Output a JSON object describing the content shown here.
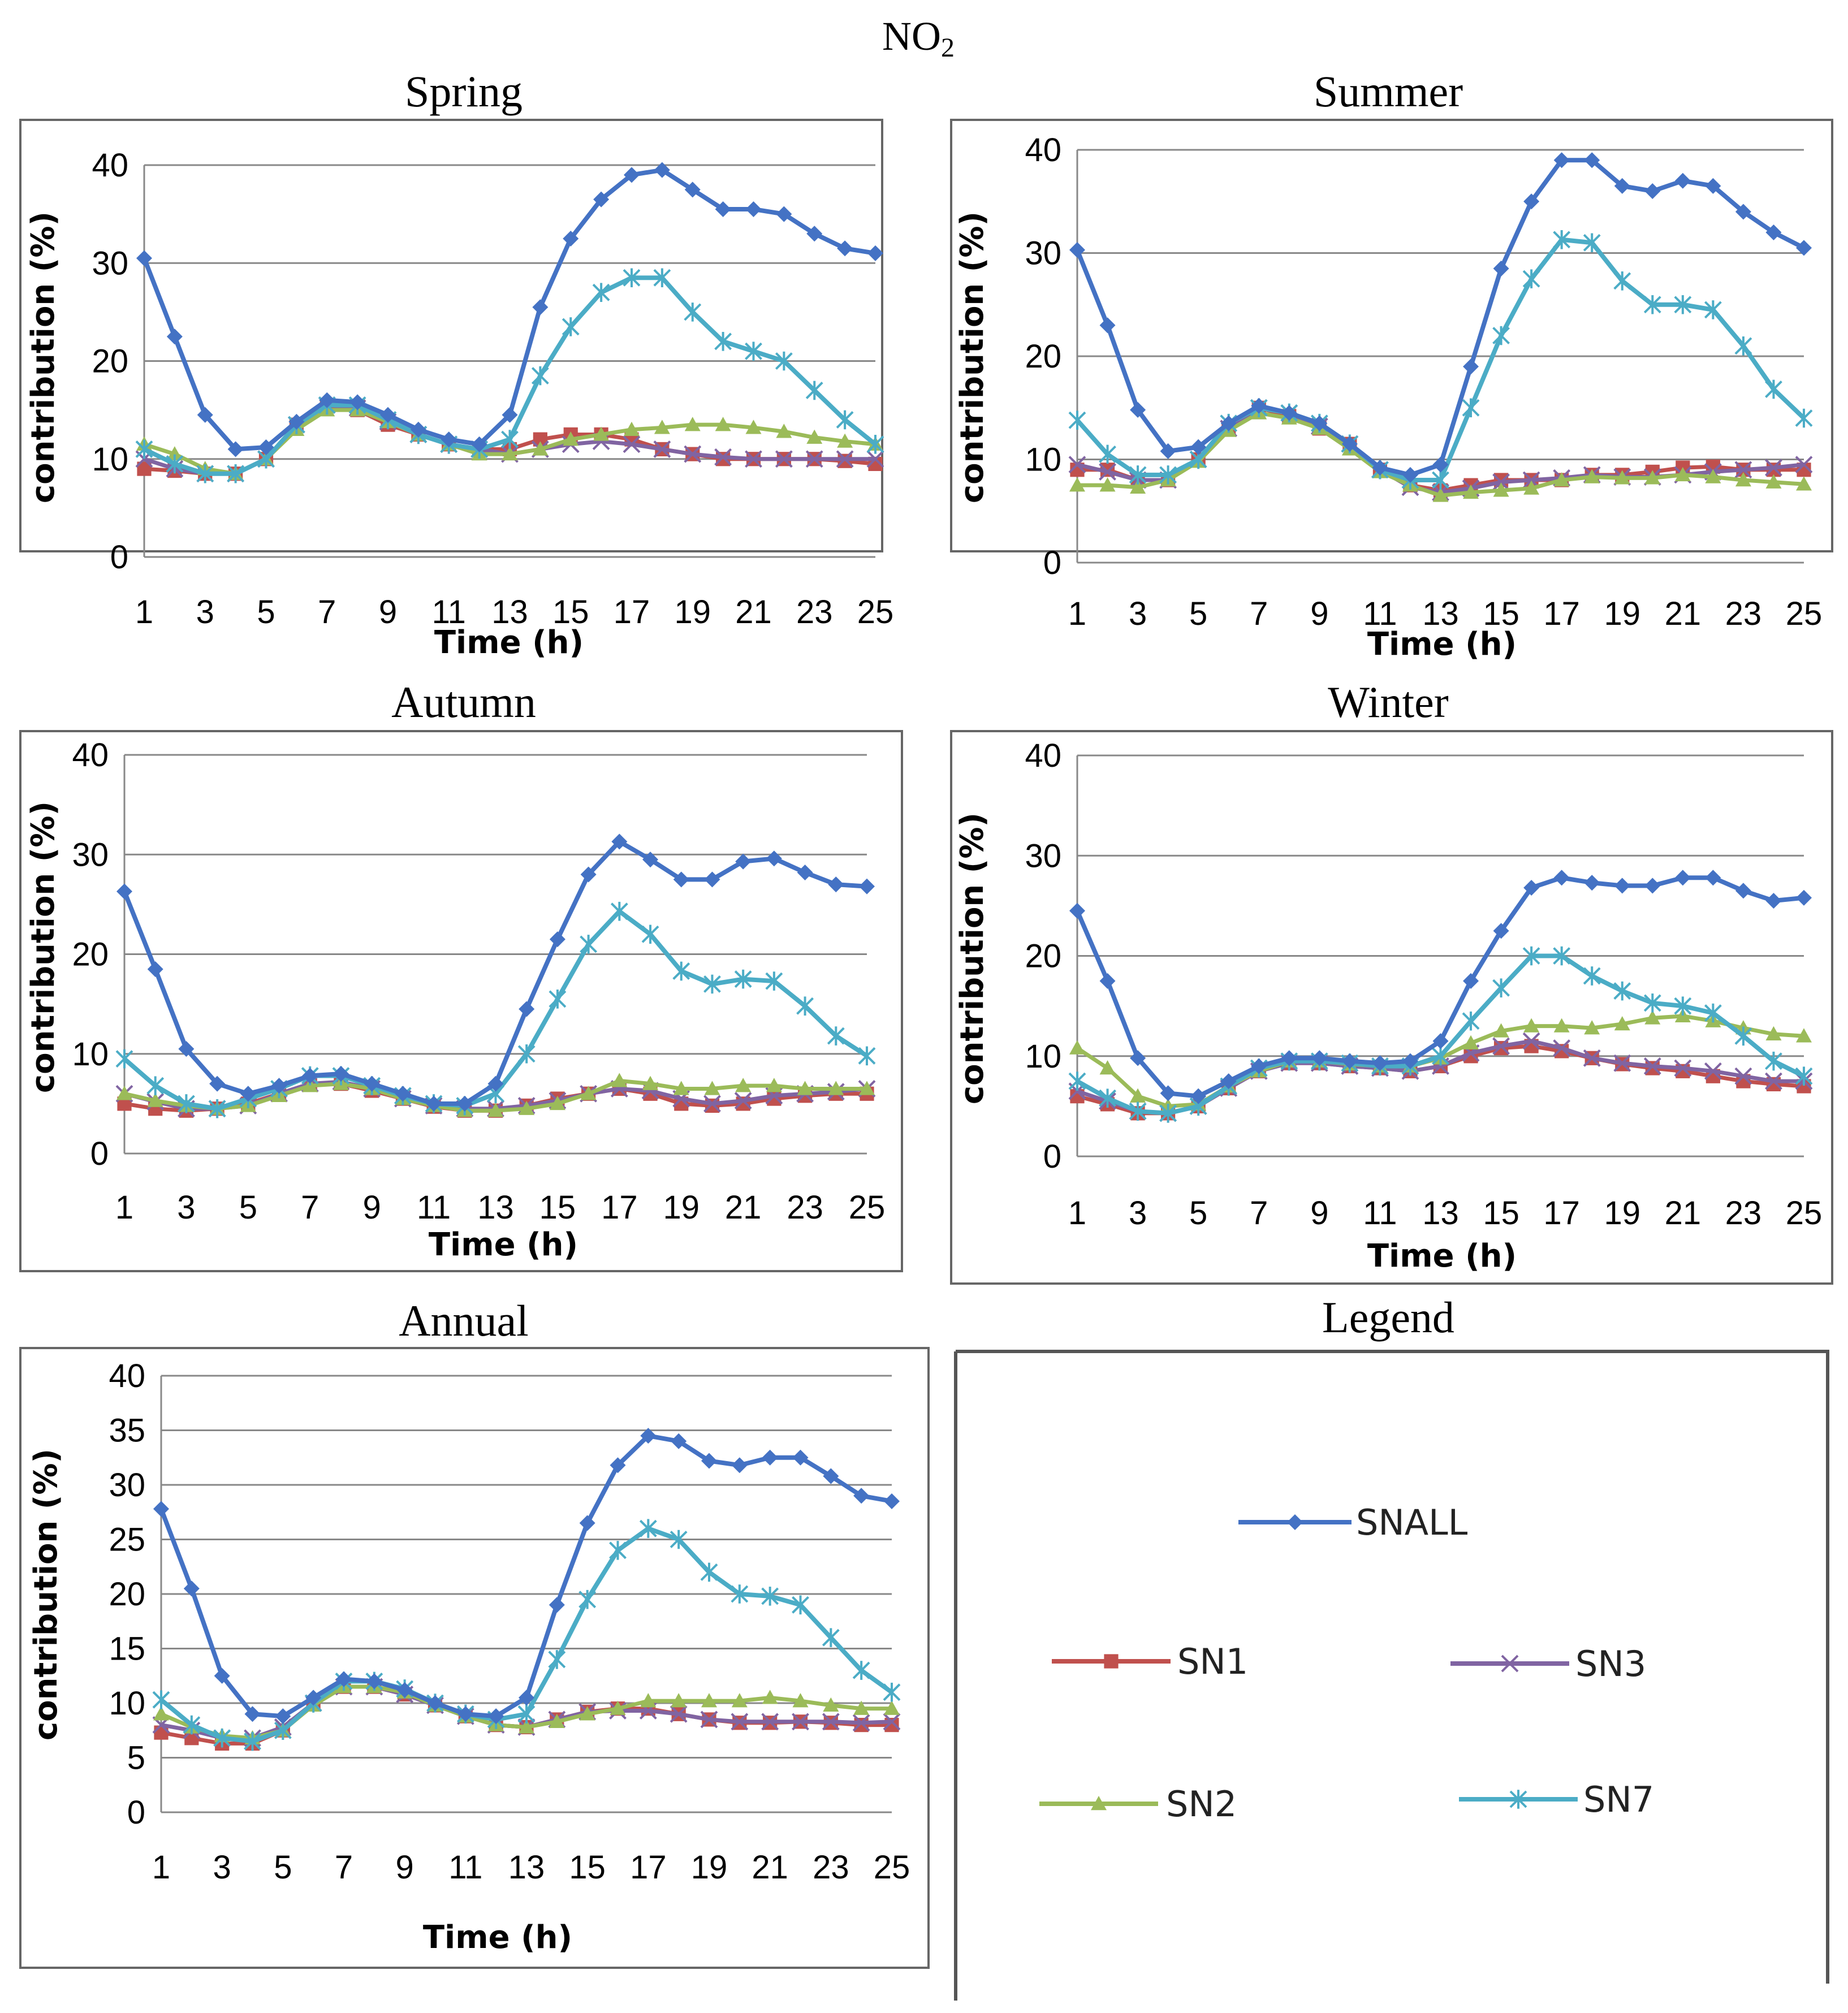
{
  "figure_title": {
    "main": "NO",
    "sub": "2"
  },
  "legend_title": "Legend",
  "colors": {
    "SNALL": "#4472C4",
    "SN1": "#C0504D",
    "SN2": "#9BBB59",
    "SN3": "#8064A2",
    "SN7": "#4BACC6"
  },
  "chart_data": [
    {
      "type": "line",
      "title": "Spring",
      "xlabel": "Time (h)",
      "ylabel": "contribution (%)",
      "xlim": [
        1,
        25
      ],
      "ylim": [
        0,
        40
      ],
      "yticks": [
        0,
        10,
        20,
        30,
        40
      ],
      "xticks": [
        1,
        3,
        5,
        7,
        9,
        11,
        13,
        15,
        17,
        19,
        21,
        23,
        25
      ],
      "x": [
        1,
        2,
        3,
        4,
        5,
        6,
        7,
        8,
        9,
        10,
        11,
        12,
        13,
        14,
        15,
        16,
        17,
        18,
        19,
        20,
        21,
        22,
        23,
        24,
        25
      ],
      "series": [
        {
          "name": "SNALL",
          "values": [
            30.5,
            22.5,
            14.5,
            11,
            11.2,
            13.8,
            16,
            15.8,
            14.5,
            13,
            12,
            11.5,
            14.5,
            25.5,
            32.5,
            36.5,
            39,
            39.5,
            37.5,
            35.5,
            35.5,
            35,
            33,
            31.5,
            31
          ]
        },
        {
          "name": "SN1",
          "values": [
            9,
            8.8,
            8.5,
            8.5,
            10,
            13.5,
            15.5,
            15,
            13.5,
            12.5,
            11.5,
            11,
            11,
            12,
            12.5,
            12.5,
            12,
            11,
            10.5,
            10,
            10,
            10,
            10,
            9.8,
            9.5
          ]
        },
        {
          "name": "SN2",
          "values": [
            11.5,
            10.5,
            9,
            8.5,
            10,
            13,
            15,
            15,
            13.8,
            12.5,
            11.5,
            10.5,
            10.5,
            11,
            12,
            12.5,
            13,
            13.2,
            13.5,
            13.5,
            13.2,
            12.8,
            12.2,
            11.8,
            11.5
          ]
        },
        {
          "name": "SN3",
          "values": [
            10,
            9,
            8.5,
            8.5,
            10,
            13.5,
            15.5,
            15.2,
            13.8,
            12.5,
            11.5,
            11,
            10.5,
            11,
            11.5,
            11.8,
            11.5,
            11,
            10.5,
            10.2,
            10,
            10,
            10,
            10,
            10
          ]
        },
        {
          "name": "SN7",
          "values": [
            11,
            9.5,
            8.5,
            8.5,
            10,
            13.5,
            15.5,
            15.5,
            14,
            12.5,
            11.5,
            11,
            12,
            18.5,
            23.5,
            27,
            28.5,
            28.5,
            25,
            22,
            21,
            20,
            17,
            14,
            11.5
          ]
        }
      ]
    },
    {
      "type": "line",
      "title": "Summer",
      "xlabel": "Time (h)",
      "ylabel": "contribution (%)",
      "xlim": [
        1,
        25
      ],
      "ylim": [
        0,
        40
      ],
      "yticks": [
        0,
        10,
        20,
        30,
        40
      ],
      "xticks": [
        1,
        3,
        5,
        7,
        9,
        11,
        13,
        15,
        17,
        19,
        21,
        23,
        25
      ],
      "x": [
        1,
        2,
        3,
        4,
        5,
        6,
        7,
        8,
        9,
        10,
        11,
        12,
        13,
        14,
        15,
        16,
        17,
        18,
        19,
        20,
        21,
        22,
        23,
        24,
        25
      ],
      "series": [
        {
          "name": "SNALL",
          "values": [
            30.3,
            23,
            14.8,
            10.8,
            11.2,
            13.5,
            15.2,
            14.5,
            13.5,
            11.5,
            9.2,
            8.5,
            9.5,
            19,
            28.5,
            35,
            39,
            39,
            36.5,
            36,
            37,
            36.5,
            34,
            32,
            30.5
          ]
        },
        {
          "name": "SN1",
          "values": [
            9,
            9,
            8,
            8,
            10,
            13,
            15,
            14.2,
            13,
            11.5,
            9,
            7.5,
            7,
            7.5,
            8,
            8,
            8,
            8.5,
            8.5,
            8.8,
            9.2,
            9.3,
            9,
            9,
            9
          ]
        },
        {
          "name": "SN2",
          "values": [
            7.5,
            7.5,
            7.3,
            8,
            9.8,
            12.8,
            14.5,
            14,
            13,
            11,
            8.8,
            7.5,
            6.5,
            6.8,
            7,
            7.2,
            8,
            8.3,
            8.2,
            8.2,
            8.5,
            8.3,
            8,
            7.8,
            7.6
          ]
        },
        {
          "name": "SN3",
          "values": [
            9.5,
            8.8,
            8,
            8,
            10,
            13,
            15,
            14.5,
            13.2,
            11.5,
            9,
            7.3,
            6.8,
            7.2,
            7.8,
            8,
            8.2,
            8.5,
            8.3,
            8.3,
            8.5,
            8.8,
            9,
            9.2,
            9.5
          ]
        },
        {
          "name": "SN7",
          "values": [
            13.8,
            10.5,
            8.5,
            8.5,
            10,
            13.5,
            15,
            14.5,
            13.5,
            11.5,
            9,
            8,
            8,
            15,
            22,
            27.5,
            31.3,
            31,
            27.3,
            25,
            25,
            24.5,
            21,
            16.8,
            14
          ]
        }
      ]
    },
    {
      "type": "line",
      "title": "Autumn",
      "xlabel": "Time (h)",
      "ylabel": "contribution (%)",
      "xlim": [
        1,
        25
      ],
      "ylim": [
        0,
        40
      ],
      "yticks": [
        0,
        10,
        20,
        30,
        40
      ],
      "xticks": [
        1,
        3,
        5,
        7,
        9,
        11,
        13,
        15,
        17,
        19,
        21,
        23,
        25
      ],
      "x": [
        1,
        2,
        3,
        4,
        5,
        6,
        7,
        8,
        9,
        10,
        11,
        12,
        13,
        14,
        15,
        16,
        17,
        18,
        19,
        20,
        21,
        22,
        23,
        24,
        25
      ],
      "series": [
        {
          "name": "SNALL",
          "values": [
            26.3,
            18.5,
            10.5,
            7,
            6,
            6.8,
            7.8,
            8,
            7,
            6,
            5,
            5,
            7,
            14.5,
            21.5,
            28,
            31.3,
            29.5,
            27.5,
            27.5,
            29.3,
            29.6,
            28.2,
            27,
            26.8
          ]
        },
        {
          "name": "SN1",
          "values": [
            5,
            4.5,
            4.3,
            4.5,
            5,
            6,
            7,
            7,
            6.3,
            5.5,
            4.7,
            4.3,
            4.3,
            4.8,
            5.5,
            6,
            6.5,
            6,
            5,
            4.8,
            5,
            5.5,
            5.8,
            6,
            6
          ]
        },
        {
          "name": "SN2",
          "values": [
            6,
            5.3,
            4.8,
            4.5,
            4.8,
            5.8,
            6.8,
            7,
            6.5,
            5.5,
            4.8,
            4.3,
            4.3,
            4.5,
            5,
            6,
            7.3,
            7,
            6.5,
            6.5,
            6.8,
            6.8,
            6.5,
            6.5,
            6.5
          ]
        },
        {
          "name": "SN3",
          "values": [
            6,
            5.2,
            4.5,
            4.5,
            4.8,
            6,
            7,
            7.2,
            6.5,
            5.5,
            4.8,
            4.5,
            4.5,
            4.8,
            5.3,
            6,
            6.5,
            6.3,
            5.5,
            5,
            5.3,
            5.8,
            6,
            6.2,
            6.5
          ]
        },
        {
          "name": "SN7",
          "values": [
            9.5,
            6.8,
            5,
            4.5,
            5.5,
            6.5,
            7.8,
            7.8,
            6.8,
            5.8,
            5,
            4.8,
            6,
            10,
            15.5,
            21,
            24.3,
            22,
            18.3,
            17,
            17.5,
            17.3,
            14.8,
            11.8,
            9.8
          ]
        }
      ]
    },
    {
      "type": "line",
      "title": "Winter",
      "xlabel": "Time (h)",
      "ylabel": "contribution (%)",
      "xlim": [
        1,
        25
      ],
      "ylim": [
        0,
        40
      ],
      "yticks": [
        0,
        10,
        20,
        30,
        40
      ],
      "xticks": [
        1,
        3,
        5,
        7,
        9,
        11,
        13,
        15,
        17,
        19,
        21,
        23,
        25
      ],
      "x": [
        1,
        2,
        3,
        4,
        5,
        6,
        7,
        8,
        9,
        10,
        11,
        12,
        13,
        14,
        15,
        16,
        17,
        18,
        19,
        20,
        21,
        22,
        23,
        24,
        25
      ],
      "series": [
        {
          "name": "SNALL",
          "values": [
            24.5,
            17.5,
            9.8,
            6.3,
            6,
            7.5,
            9,
            9.8,
            9.8,
            9.5,
            9.3,
            9.5,
            11.5,
            17.5,
            22.5,
            26.8,
            27.8,
            27.3,
            27,
            27,
            27.8,
            27.8,
            26.5,
            25.5,
            25.8
          ]
        },
        {
          "name": "SN1",
          "values": [
            6,
            5.2,
            4.3,
            4.3,
            5,
            6.8,
            8.5,
            9.3,
            9.3,
            9,
            8.8,
            8.5,
            9,
            10,
            10.8,
            11,
            10.5,
            9.8,
            9.2,
            8.8,
            8.5,
            8,
            7.5,
            7.2,
            7
          ]
        },
        {
          "name": "SN2",
          "values": [
            10.8,
            8.8,
            6,
            5,
            5.2,
            7,
            8.5,
            9.5,
            9.5,
            9.2,
            9,
            9,
            9.8,
            11.3,
            12.5,
            13,
            13,
            12.8,
            13.2,
            13.8,
            14,
            13.5,
            12.8,
            12.2,
            12
          ]
        },
        {
          "name": "SN3",
          "values": [
            6.5,
            5.5,
            4.5,
            4.3,
            5,
            6.8,
            8.5,
            9.3,
            9.3,
            9,
            8.8,
            8.5,
            9,
            10.3,
            11,
            11.5,
            10.8,
            9.8,
            9.3,
            9,
            8.8,
            8.5,
            8,
            7.5,
            7.5
          ]
        },
        {
          "name": "SN7",
          "values": [
            7.5,
            5.8,
            4.5,
            4.3,
            5,
            7,
            8.8,
            9.5,
            9.5,
            9.3,
            9,
            9,
            10,
            13.5,
            16.8,
            20,
            20,
            18,
            16.5,
            15.3,
            15,
            14.3,
            12,
            9.5,
            8
          ]
        }
      ]
    },
    {
      "type": "line",
      "title": "Annual",
      "xlabel": "Time (h)",
      "ylabel": "contribution (%)",
      "xlim": [
        1,
        25
      ],
      "ylim": [
        0,
        40
      ],
      "yticks": [
        0,
        5,
        10,
        15,
        20,
        25,
        30,
        35,
        40
      ],
      "xticks": [
        1,
        3,
        5,
        7,
        9,
        11,
        13,
        15,
        17,
        19,
        21,
        23,
        25
      ],
      "x": [
        1,
        2,
        3,
        4,
        5,
        6,
        7,
        8,
        9,
        10,
        11,
        12,
        13,
        14,
        15,
        16,
        17,
        18,
        19,
        20,
        21,
        22,
        23,
        24,
        25
      ],
      "series": [
        {
          "name": "SNALL",
          "values": [
            27.8,
            20.5,
            12.5,
            9,
            8.8,
            10.5,
            12.2,
            12,
            11.2,
            10,
            9,
            8.8,
            10.5,
            19,
            26.5,
            31.8,
            34.5,
            34,
            32.2,
            31.8,
            32.5,
            32.5,
            30.8,
            29,
            28.5
          ]
        },
        {
          "name": "SN1",
          "values": [
            7.3,
            6.8,
            6.3,
            6.3,
            7.5,
            10,
            11.5,
            11.5,
            10.8,
            9.8,
            8.8,
            8,
            7.8,
            8.5,
            9.2,
            9.5,
            9.5,
            9,
            8.5,
            8.2,
            8.2,
            8.3,
            8.2,
            8,
            8
          ]
        },
        {
          "name": "SN2",
          "values": [
            9,
            7.8,
            7,
            6.8,
            7.5,
            9.8,
            11.5,
            11.5,
            11,
            9.8,
            8.8,
            8,
            7.8,
            8.3,
            9,
            9.5,
            10.2,
            10.2,
            10.2,
            10.2,
            10.5,
            10.2,
            9.8,
            9.5,
            9.5
          ]
        },
        {
          "name": "SN3",
          "values": [
            8,
            7.5,
            6.8,
            6.8,
            7.8,
            10,
            11.5,
            11.5,
            10.8,
            9.8,
            8.8,
            8,
            7.8,
            8.5,
            9.2,
            9.3,
            9.3,
            9,
            8.5,
            8.3,
            8.3,
            8.3,
            8.3,
            8.2,
            8.3
          ]
        },
        {
          "name": "SN7",
          "values": [
            10.3,
            8,
            6.8,
            6.5,
            7.5,
            10,
            12,
            12,
            11.3,
            10,
            9,
            8.5,
            9,
            14,
            19.5,
            24,
            26,
            25,
            22,
            20,
            19.8,
            19,
            16,
            13,
            11
          ]
        }
      ]
    }
  ],
  "legend_items": [
    {
      "name": "SNALL",
      "label": "SNALL"
    },
    {
      "name": "SN1",
      "label": "SN1"
    },
    {
      "name": "SN3",
      "label": "SN3"
    },
    {
      "name": "SN2",
      "label": "SN2"
    },
    {
      "name": "SN7",
      "label": "SN7"
    }
  ]
}
